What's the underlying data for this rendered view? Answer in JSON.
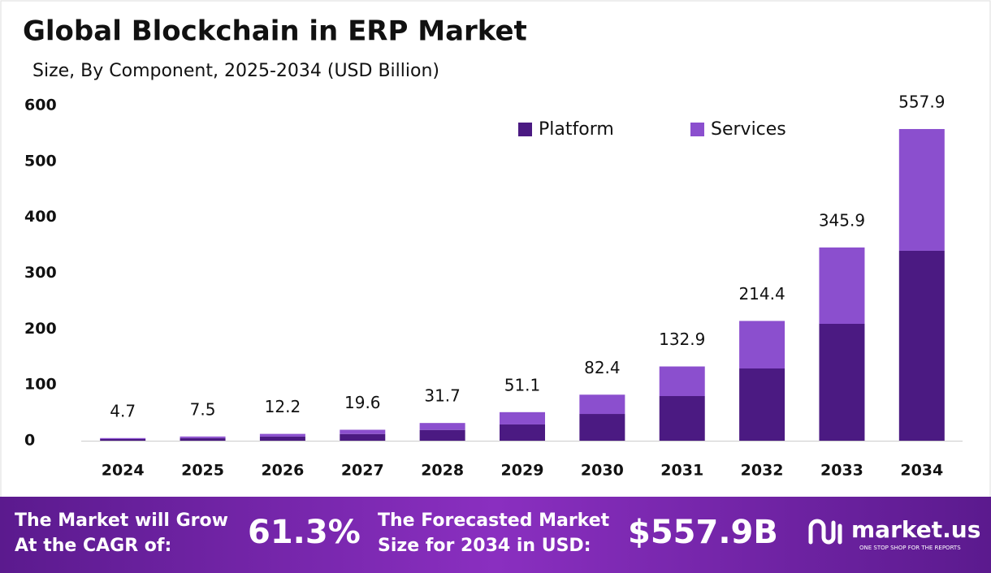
{
  "chart_data": {
    "type": "stacked_bar",
    "title": "Global Blockchain in ERP Market",
    "subtitle": "Size, By Component, 2025-2034 (USD Billion)",
    "categories": [
      "2024",
      "2025",
      "2026",
      "2027",
      "2028",
      "2029",
      "2030",
      "2031",
      "2032",
      "2033",
      "2034"
    ],
    "series": [
      {
        "name": "Platform",
        "color": "#4b1a82",
        "values": [
          2.9,
          4.6,
          7.4,
          12.0,
          19.3,
          29.1,
          47.9,
          79.9,
          129.3,
          209.2,
          340.0
        ]
      },
      {
        "name": "Services",
        "color": "#8b4fce",
        "values": [
          1.8,
          2.9,
          4.8,
          7.6,
          12.4,
          22.0,
          34.5,
          53.0,
          85.1,
          136.7,
          217.9
        ]
      }
    ],
    "totals": [
      4.7,
      7.5,
      12.2,
      19.6,
      31.7,
      51.1,
      82.4,
      132.9,
      214.4,
      345.9,
      557.9
    ],
    "ylim": [
      0,
      600
    ],
    "yticks": [
      0,
      100,
      200,
      300,
      400,
      500,
      600
    ],
    "grid": false
  },
  "footer": {
    "cagr_text_1": "The Market will Grow",
    "cagr_text_2": "At the CAGR of:",
    "cagr_value": "61.3%",
    "forecast_text_1": "The Forecasted Market",
    "forecast_text_2": "Size for 2034 in USD:",
    "forecast_value": "$557.9B",
    "logo": "market.us",
    "tagline": "ONE STOP SHOP FOR THE REPORTS"
  }
}
